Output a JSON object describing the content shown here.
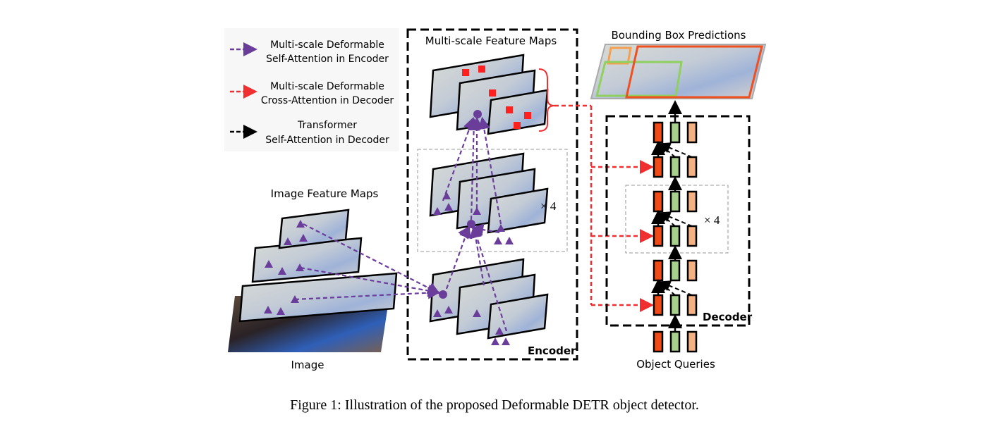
{
  "legend": {
    "items": [
      {
        "line1": "Multi-scale Deformable",
        "line2": "Self-Attention in Encoder",
        "color": "#6a3d9a"
      },
      {
        "line1": "Multi-scale Deformable",
        "line2": "Cross-Attention in Decoder",
        "color": "#f03030"
      },
      {
        "line1": "Transformer",
        "line2": "Self-Attention in Decoder",
        "color": "#000000"
      }
    ]
  },
  "labels": {
    "image_feature_maps": "Image Feature Maps",
    "image": "Image",
    "multiscale_feature_maps": "Multi-scale Feature Maps",
    "encoder": "Encoder",
    "encoder_repeat": "× 4",
    "bbox_predictions": "Bounding Box Predictions",
    "decoder": "Decoder",
    "decoder_repeat": "× 4",
    "object_queries": "Object Queries"
  },
  "caption": "Figure 1: Illustration of the proposed Deformable DETR object detector.",
  "colors": {
    "encoder_attention": "#6a3d9a",
    "cross_attention": "#f03030",
    "decoder_self_attention": "#000000",
    "query_red": "#f04a18",
    "query_green": "#a8d08d",
    "query_peach": "#f4b183",
    "sampling_point": "#ff2020"
  }
}
